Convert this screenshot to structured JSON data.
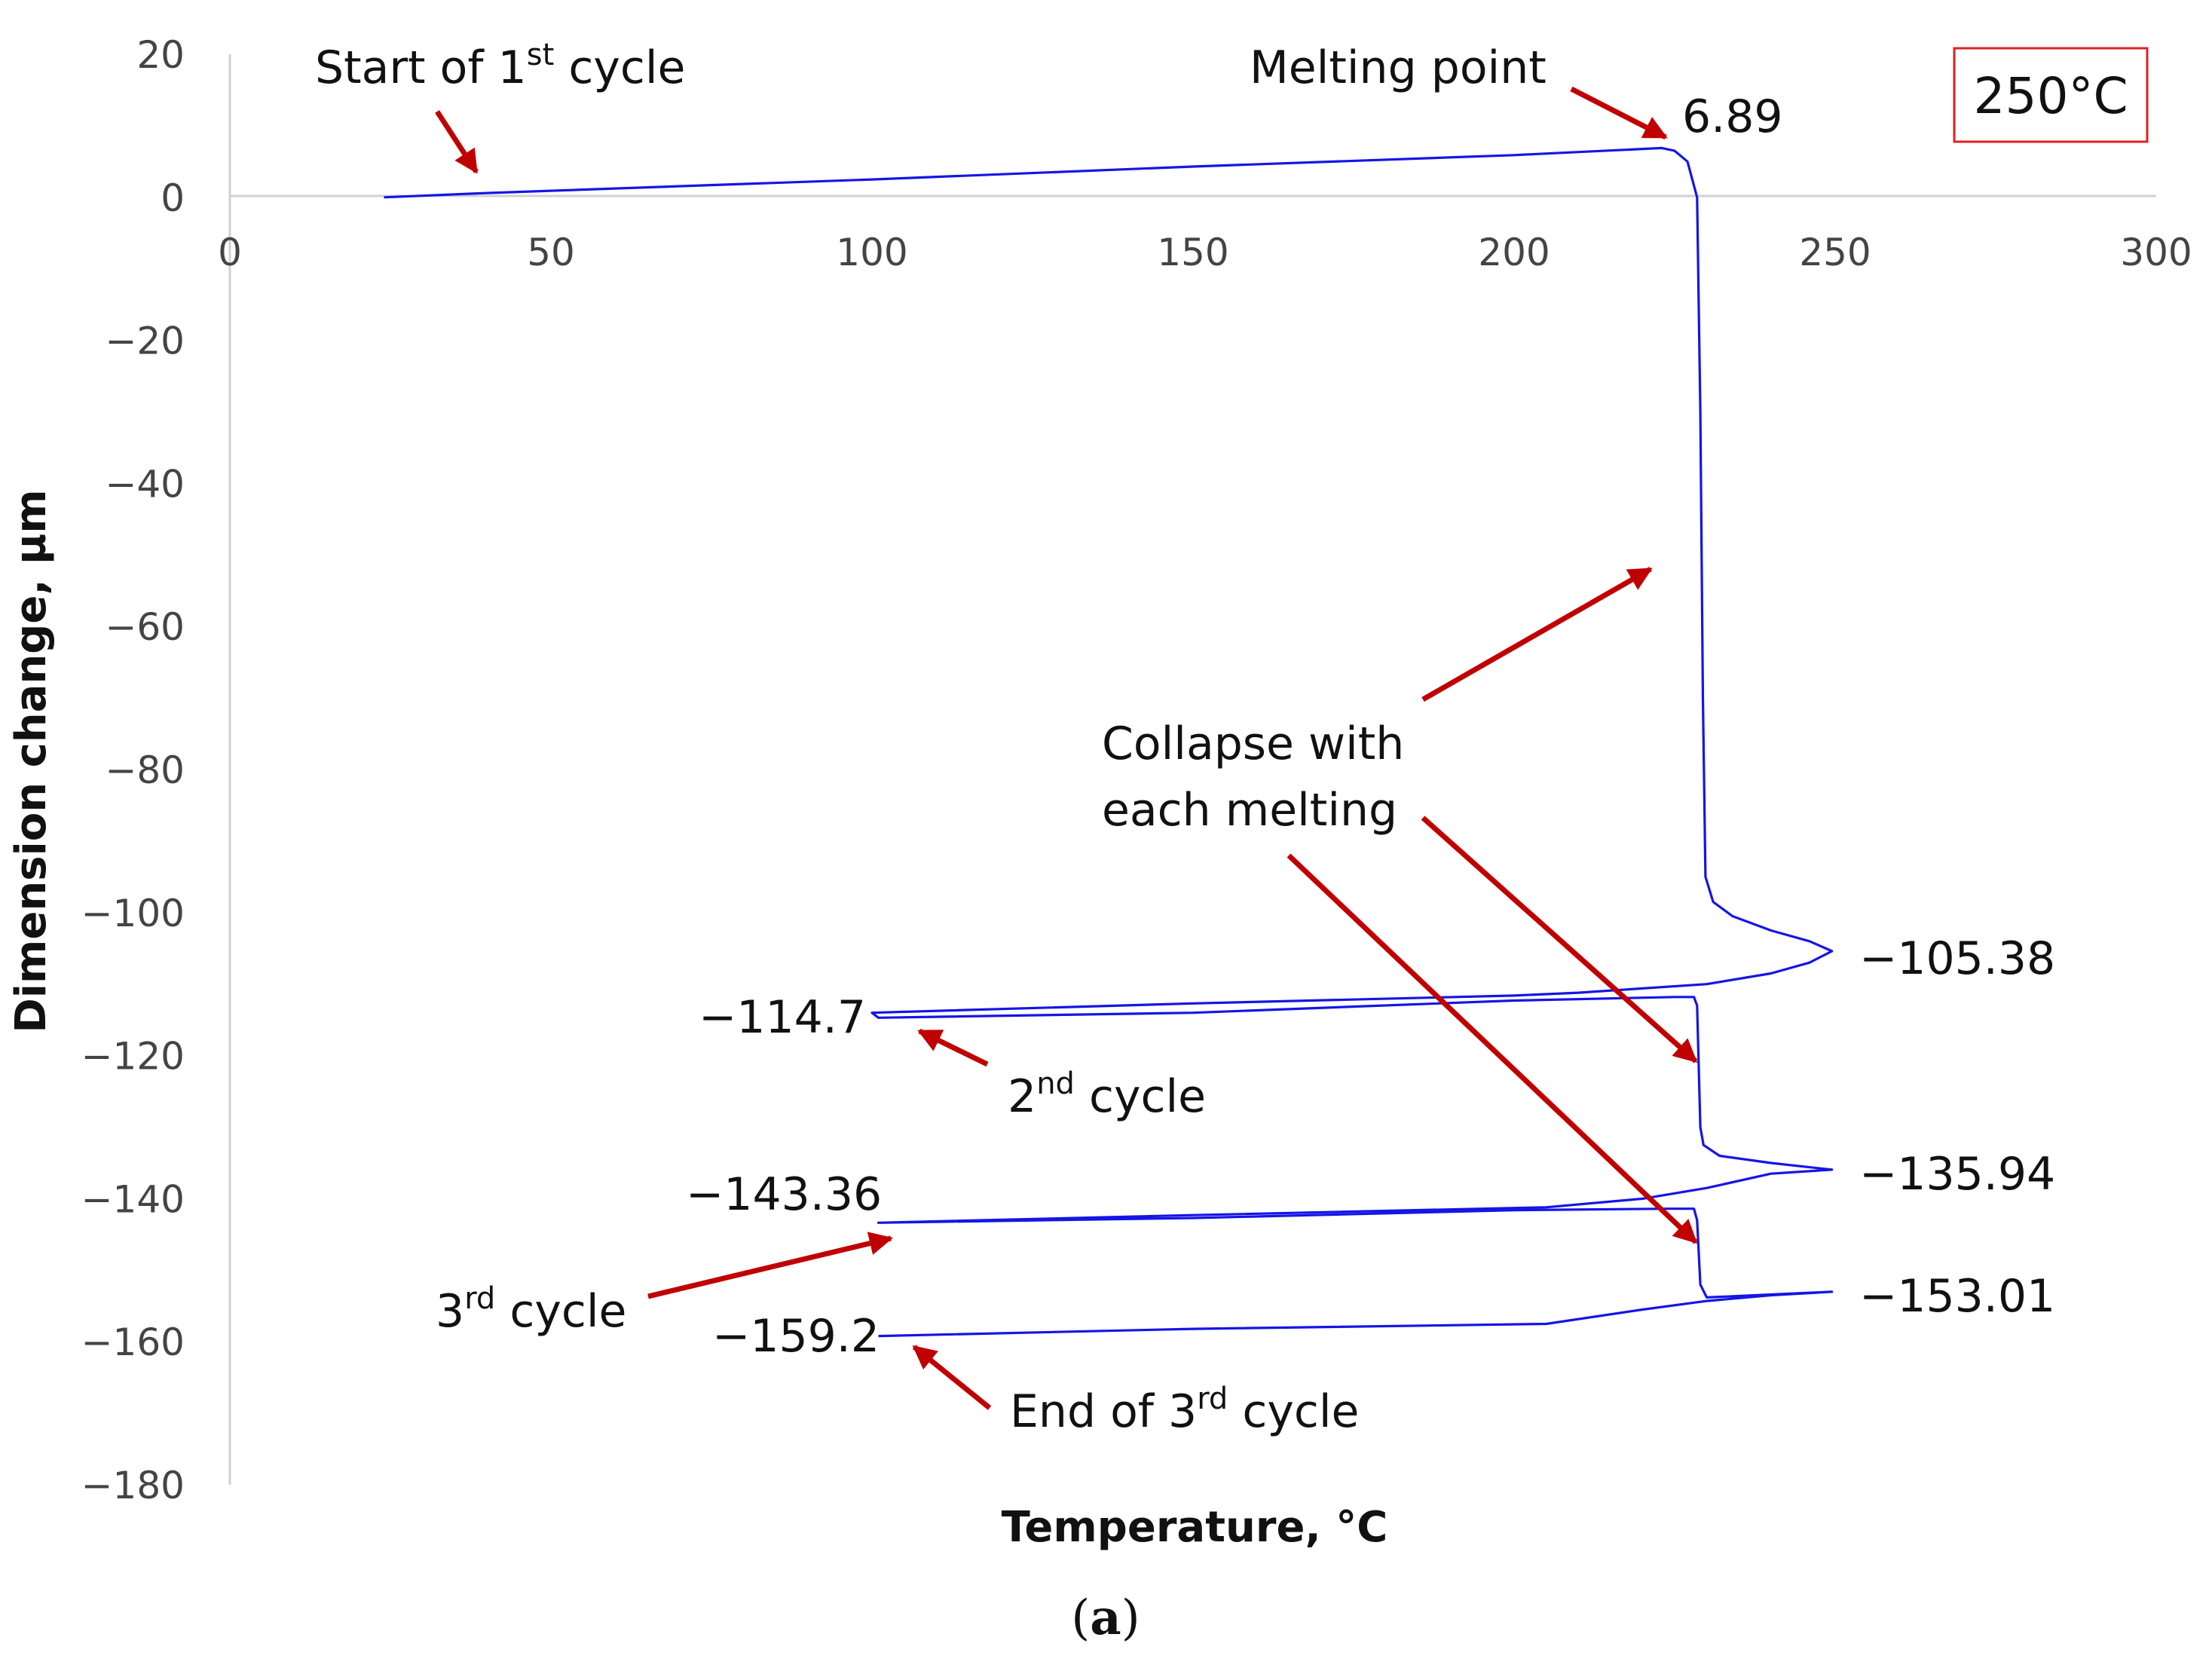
{
  "colors": {
    "line": "#1515e6",
    "arrow": "#c00000",
    "badge_border": "#e02020",
    "axis": "#d0d0d0"
  },
  "chart_data": {
    "type": "line",
    "title": "",
    "xlabel": "Temperature, °C",
    "ylabel": "Dimension change, µm",
    "xlim": [
      0,
      300
    ],
    "ylim": [
      -180,
      20
    ],
    "x_ticks": [
      0,
      50,
      100,
      150,
      200,
      250,
      300
    ],
    "y_ticks": [
      20,
      0,
      -20,
      -40,
      -60,
      -80,
      -100,
      -120,
      -140,
      -160,
      -180
    ],
    "x_tick_labels": [
      "0",
      "50",
      "100",
      "150",
      "200",
      "250",
      "300"
    ],
    "y_tick_labels": [
      "20",
      "0",
      "−20",
      "−40",
      "−60",
      "−80",
      "−100",
      "−120",
      "−140",
      "−160",
      "−180"
    ],
    "grid": false,
    "series": [
      {
        "name": "Dimension change",
        "points": [
          [
            24,
            0
          ],
          [
            40,
            0.6
          ],
          [
            100,
            2.5
          ],
          [
            150,
            4.3
          ],
          [
            200,
            5.9
          ],
          [
            223,
            6.89
          ],
          [
            225,
            6.5
          ],
          [
            227,
            5
          ],
          [
            228.5,
            0
          ],
          [
            229,
            -30
          ],
          [
            229.4,
            -70
          ],
          [
            229.8,
            -95
          ],
          [
            231,
            -98.5
          ],
          [
            234,
            -100.5
          ],
          [
            240,
            -102.5
          ],
          [
            246,
            -104
          ],
          [
            249.5,
            -105.38
          ],
          [
            246,
            -107
          ],
          [
            240,
            -108.5
          ],
          [
            230,
            -110
          ],
          [
            210,
            -111.2
          ],
          [
            200,
            -111.6
          ],
          [
            150,
            -112.7
          ],
          [
            100,
            -114
          ],
          [
            101,
            -114.7
          ],
          [
            150,
            -114
          ],
          [
            200,
            -112.3
          ],
          [
            225,
            -111.8
          ],
          [
            228,
            -111.8
          ],
          [
            228.5,
            -113
          ],
          [
            229,
            -130
          ],
          [
            229.5,
            -132.5
          ],
          [
            232,
            -134
          ],
          [
            240,
            -135
          ],
          [
            249.5,
            -135.94
          ],
          [
            240,
            -136.5
          ],
          [
            230,
            -138.5
          ],
          [
            220,
            -140
          ],
          [
            205,
            -141.2
          ],
          [
            150,
            -142.3
          ],
          [
            101,
            -143.36
          ],
          [
            150,
            -142.7
          ],
          [
            200,
            -141.6
          ],
          [
            224,
            -141.4
          ],
          [
            228,
            -141.4
          ],
          [
            228.5,
            -143
          ],
          [
            229,
            -152
          ],
          [
            230,
            -153.8
          ],
          [
            235,
            -153.6
          ],
          [
            249.5,
            -153.01
          ],
          [
            240,
            -153.5
          ],
          [
            230,
            -154.3
          ],
          [
            220,
            -155.5
          ],
          [
            205,
            -157.5
          ],
          [
            150,
            -158.2
          ],
          [
            101,
            -159.2
          ]
        ]
      }
    ],
    "annotations": {
      "start": {
        "text": "Start of 1",
        "sup": "st",
        "rest": " cycle"
      },
      "melting_point": "Melting point",
      "peak_value": "6.89",
      "badge": "250°C",
      "collapse_line1": "Collapse with",
      "collapse_line2": "each melting",
      "v1": "−105.38",
      "v2": "−114.7",
      "v3": "−135.94",
      "v4": "−143.36",
      "v5": "−153.01",
      "v6": "−159.2",
      "second_cycle": {
        "text": "2",
        "sup": "nd",
        "rest": " cycle"
      },
      "third_cycle": {
        "text": "3",
        "sup": "rd",
        "rest": " cycle"
      },
      "end_third": {
        "text": "End of 3",
        "sup": "rd",
        "rest": " cycle"
      }
    }
  },
  "caption": {
    "open": "(",
    "letter": "a",
    "close": ")"
  }
}
